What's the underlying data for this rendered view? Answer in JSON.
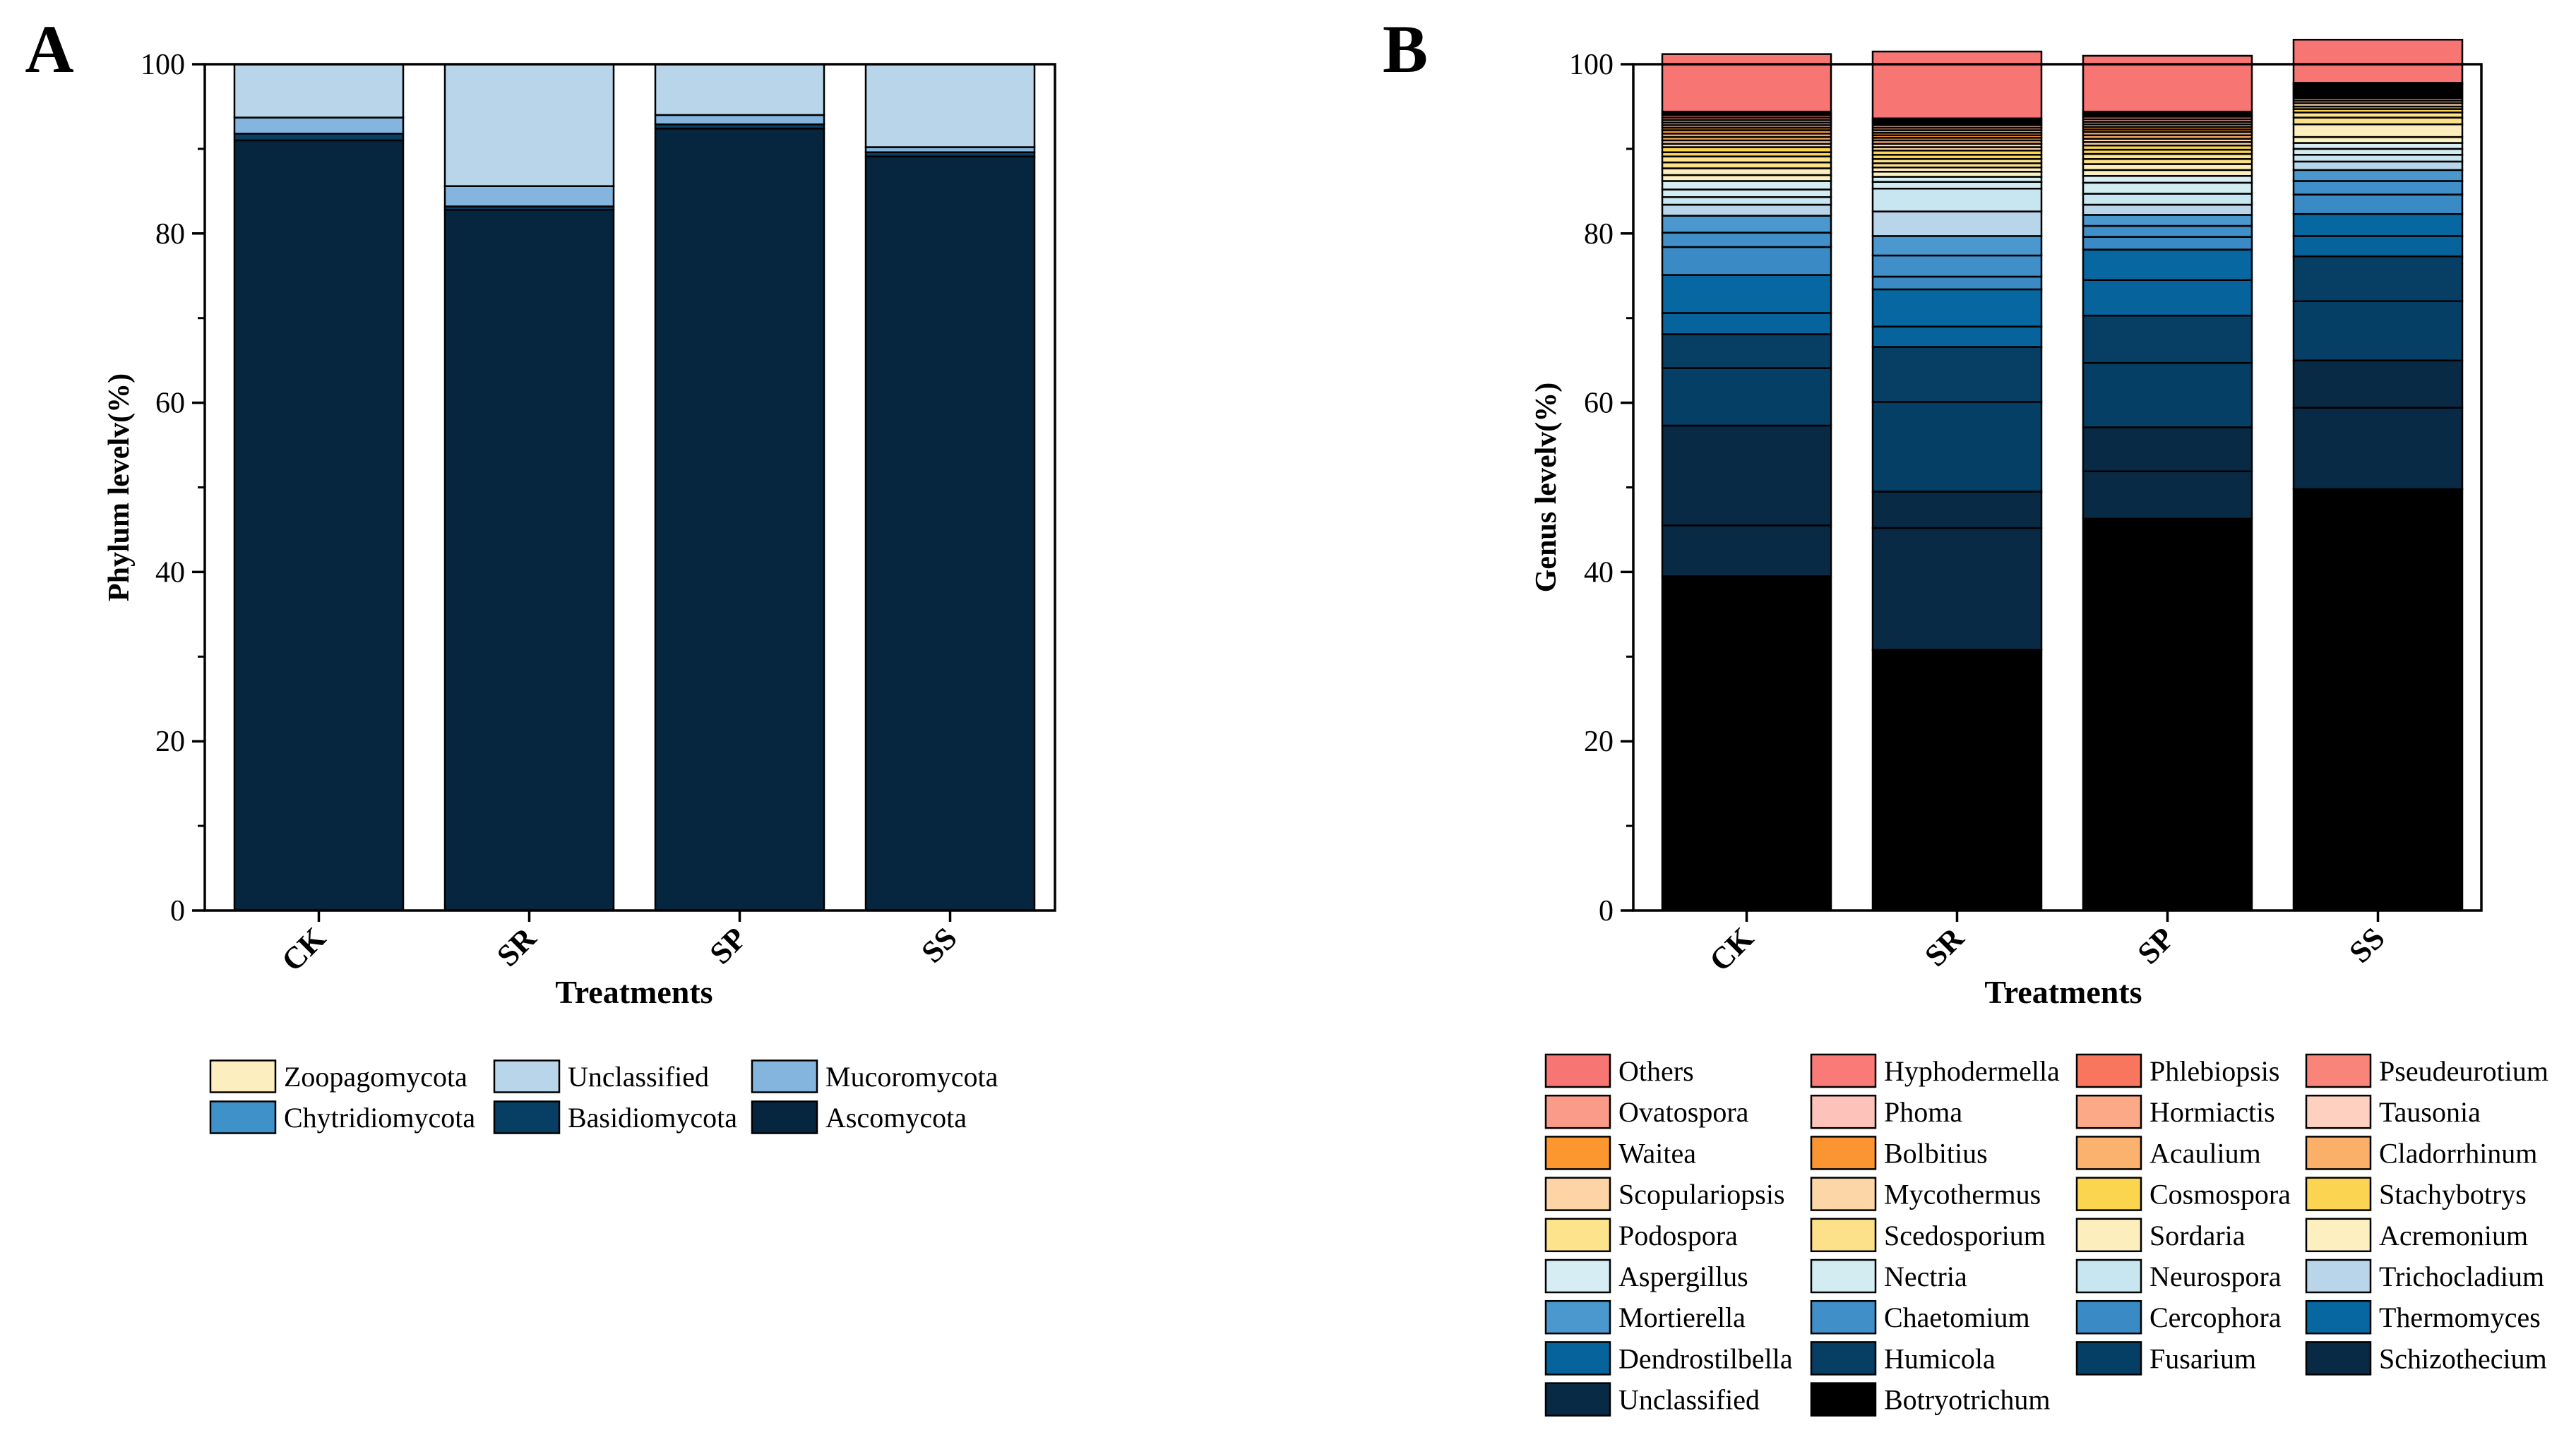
{
  "chart_data": [
    {
      "panel_label": "A",
      "type": "bar",
      "stacked": true,
      "title": "",
      "xlabel": "Treatments",
      "ylabel": "Phylum levelv(%)",
      "ylim": [
        0,
        100
      ],
      "yticks": [
        "0",
        "20",
        "40",
        "60",
        "80",
        "100"
      ],
      "categories": [
        "CK",
        "SR",
        "SP",
        "SS"
      ],
      "series": [
        {
          "name": "Ascomycota",
          "color": "#06253f",
          "values": [
            91.0,
            82.8,
            92.4,
            89.1
          ]
        },
        {
          "name": "Basidiomycota",
          "color": "#063f63",
          "values": [
            0.8,
            0.4,
            0.5,
            0.5
          ]
        },
        {
          "name": "Chytridiomycota",
          "color": "#3f91c9",
          "values": [
            0.0,
            0.0,
            0.0,
            0.0
          ]
        },
        {
          "name": "Mucoromycota",
          "color": "#84b5de",
          "values": [
            1.9,
            2.4,
            1.1,
            0.6
          ]
        },
        {
          "name": "Unclassified",
          "color": "#b8d5ea",
          "values": [
            6.3,
            14.4,
            6.0,
            9.8
          ]
        },
        {
          "name": "Zoopagomycota",
          "color": "#fdeebf",
          "values": [
            0.0,
            0.0,
            0.0,
            0.0
          ]
        }
      ],
      "legend": [
        "Zoopagomycota",
        "Unclassified",
        "Mucoromycota",
        "Chytridiomycota",
        "Basidiomycota",
        "Ascomycota"
      ],
      "legend_colors": [
        "#fdeebf",
        "#b8d5ea",
        "#84b5de",
        "#3f91c9",
        "#063f63",
        "#06253f"
      ]
    },
    {
      "panel_label": "B",
      "type": "bar",
      "stacked": true,
      "title": "",
      "xlabel": "Treatments",
      "ylabel": "Genus levelv(%)",
      "ylim": [
        0,
        100
      ],
      "yticks": [
        "0",
        "20",
        "40",
        "60",
        "80",
        "100"
      ],
      "categories": [
        "CK",
        "SR",
        "SP",
        "SS"
      ],
      "series": [
        {
          "name": "Botryotrichum",
          "color": "#000000",
          "values": [
            39.5,
            30.8,
            46.3,
            49.8
          ]
        },
        {
          "name": "Unclassified",
          "color": "#092a45",
          "values": [
            6.0,
            14.4,
            5.6,
            9.6
          ]
        },
        {
          "name": "Schizothecium",
          "color": "#082a45",
          "values": [
            11.8,
            4.3,
            5.2,
            5.6
          ]
        },
        {
          "name": "Fusarium",
          "color": "#053f66",
          "values": [
            6.8,
            10.6,
            7.6,
            7.0
          ]
        },
        {
          "name": "Humicola",
          "color": "#063e64",
          "values": [
            4.0,
            6.5,
            5.6,
            5.3
          ]
        },
        {
          "name": "Dendrostilbella",
          "color": "#07639b",
          "values": [
            2.5,
            2.4,
            4.2,
            2.4
          ]
        },
        {
          "name": "Thermomyces",
          "color": "#0767a0",
          "values": [
            4.5,
            4.4,
            3.6,
            2.6
          ]
        },
        {
          "name": "Cercophora",
          "color": "#3a8bc5",
          "values": [
            3.3,
            1.5,
            1.5,
            2.3
          ]
        },
        {
          "name": "Chaetomium",
          "color": "#418fc8",
          "values": [
            1.7,
            2.5,
            1.3,
            1.6
          ]
        },
        {
          "name": "Mortierella",
          "color": "#4a98cd",
          "values": [
            2.0,
            2.3,
            1.3,
            1.3
          ]
        },
        {
          "name": "Trichocladium",
          "color": "#b8d5ea",
          "values": [
            1.3,
            2.9,
            1.2,
            1.0
          ]
        },
        {
          "name": "Neurospora",
          "color": "#c7e6ef",
          "values": [
            0.9,
            2.7,
            1.3,
            0.8
          ]
        },
        {
          "name": "Nectria",
          "color": "#d3ecf1",
          "values": [
            0.9,
            0.8,
            1.3,
            0.7
          ]
        },
        {
          "name": "Aspergillus",
          "color": "#d6eef3",
          "values": [
            1.0,
            0.6,
            0.8,
            0.7
          ]
        },
        {
          "name": "Acremonium",
          "color": "#fdf0c0",
          "values": [
            0.7,
            0.6,
            0.7,
            0.7
          ]
        },
        {
          "name": "Sordaria",
          "color": "#fdeebd",
          "values": [
            0.8,
            0.5,
            0.7,
            1.5
          ]
        },
        {
          "name": "Scedosporium",
          "color": "#fde18a",
          "values": [
            0.7,
            0.5,
            0.6,
            0.8
          ]
        },
        {
          "name": "Podospora",
          "color": "#fde38c",
          "values": [
            0.7,
            0.5,
            0.6,
            0.6
          ]
        },
        {
          "name": "Stachybotrys",
          "color": "#fbd451",
          "values": [
            0.5,
            0.5,
            0.5,
            0.4
          ]
        },
        {
          "name": "Cosmospora",
          "color": "#fcd54f",
          "values": [
            0.6,
            0.5,
            0.5,
            0.3
          ]
        },
        {
          "name": "Mycothermus",
          "color": "#fdd6a8",
          "values": [
            0.4,
            0.4,
            0.4,
            0.4
          ]
        },
        {
          "name": "Scopulariopsis",
          "color": "#fdd4a6",
          "values": [
            0.4,
            0.4,
            0.4,
            0.3
          ]
        },
        {
          "name": "Cladorrhinum",
          "color": "#fbb06a",
          "values": [
            0.4,
            0.4,
            0.4,
            0.3
          ]
        },
        {
          "name": "Acaulium",
          "color": "#fab26e",
          "values": [
            0.4,
            0.3,
            0.4,
            0.2
          ]
        },
        {
          "name": "Bolbitius",
          "color": "#fb9532",
          "values": [
            0.4,
            0.3,
            0.3,
            0.2
          ]
        },
        {
          "name": "Waitea",
          "color": "#fc962f",
          "values": [
            0.3,
            0.3,
            0.3,
            0.2
          ]
        },
        {
          "name": "Tausonia",
          "color": "#fdd0bf",
          "values": [
            0.3,
            0.3,
            0.3,
            0.2
          ]
        },
        {
          "name": "Hormiactis",
          "color": "#fca987",
          "values": [
            0.3,
            0.3,
            0.3,
            0.2
          ]
        },
        {
          "name": "Phoma",
          "color": "#fdc2b9",
          "values": [
            0.3,
            0.3,
            0.3,
            0.2
          ]
        },
        {
          "name": "Ovatospora",
          "color": "#fa9a89",
          "values": [
            0.3,
            0.2,
            0.3,
            0.2
          ]
        },
        {
          "name": "Pseudeurotium",
          "color": "#f9857a",
          "values": [
            0.3,
            0.2,
            0.2,
            0.2
          ]
        },
        {
          "name": "Phlebiopsis",
          "color": "#f9765e",
          "values": [
            0.2,
            0.2,
            0.2,
            0.1
          ]
        },
        {
          "name": "Hyphodermella",
          "color": "#f97a76",
          "values": [
            0.2,
            0.2,
            0.2,
            0.1
          ]
        },
        {
          "name": "Others",
          "color": "#f77572",
          "values": [
            6.8,
            7.9,
            6.6,
            5.1
          ]
        }
      ],
      "legend": [
        "Others",
        "Hyphodermella",
        "Phlebiopsis",
        "Pseudeurotium",
        "Ovatospora",
        "Phoma",
        "Hormiactis",
        "Tausonia",
        "Waitea",
        "Bolbitius",
        "Acaulium",
        "Cladorrhinum",
        "Scopulariopsis",
        "Mycothermus",
        "Cosmospora",
        "Stachybotrys",
        "Podospora",
        "Scedosporium",
        "Sordaria",
        "Acremonium",
        "Aspergillus",
        "Nectria",
        "Neurospora",
        "Trichocladium",
        "Mortierella",
        "Chaetomium",
        "Cercophora",
        "Thermomyces",
        "Dendrostilbella",
        "Humicola",
        "Fusarium",
        "Schizothecium",
        "Unclassified",
        "Botryotrichum"
      ],
      "legend_colors": [
        "#f77572",
        "#f97a76",
        "#f9765e",
        "#f9857a",
        "#fa9a89",
        "#fdc2b9",
        "#fca987",
        "#fdd0bf",
        "#fc962f",
        "#fb9532",
        "#fab26e",
        "#fbb06a",
        "#fdd4a6",
        "#fdd6a8",
        "#fcd54f",
        "#fbd451",
        "#fde38c",
        "#fde18a",
        "#fdeebd",
        "#fdf0c0",
        "#d6eef3",
        "#d3ecf1",
        "#c7e6ef",
        "#b8d5ea",
        "#4a98cd",
        "#418fc8",
        "#3a8bc5",
        "#0767a0",
        "#07639b",
        "#063e64",
        "#053f66",
        "#082a45",
        "#092a45",
        "#000000"
      ]
    }
  ]
}
